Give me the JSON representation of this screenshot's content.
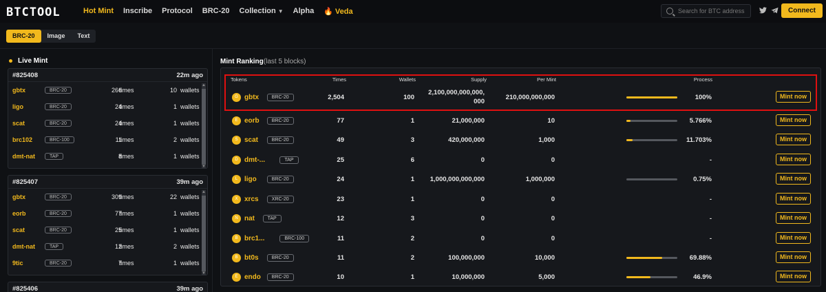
{
  "header": {
    "logo": "BTCTOOL",
    "nav": [
      {
        "label": "Hot Mint",
        "active": true
      },
      {
        "label": "Inscribe"
      },
      {
        "label": "Protocol"
      },
      {
        "label": "BRC-20"
      },
      {
        "label": "Collection",
        "dropdown": true
      },
      {
        "label": "Alpha"
      },
      {
        "label": "Veda",
        "icon": "fire-icon"
      }
    ],
    "search_placeholder": "Search for BTC address",
    "connect_label": "Connect",
    "accent": "#f2b91d"
  },
  "tabs": [
    "BRC-20",
    "Image",
    "Text"
  ],
  "live": {
    "title": "Live Mint",
    "times_unit": "times",
    "wallets_unit": "wallets",
    "blocks": [
      {
        "id": "#825408",
        "ago": "22m ago",
        "rows": [
          {
            "name": "gbtx",
            "tag": "BRC-20",
            "times": "266",
            "wallets": "10"
          },
          {
            "name": "ligo",
            "tag": "BRC-20",
            "times": "24",
            "wallets": "1"
          },
          {
            "name": "scat",
            "tag": "BRC-20",
            "times": "24",
            "wallets": "1"
          },
          {
            "name": "brc102",
            "tag": "BRC-100",
            "times": "11",
            "wallets": "2"
          },
          {
            "name": "dmt-nat",
            "tag": "TAP",
            "times": "8",
            "wallets": "1"
          }
        ]
      },
      {
        "id": "#825407",
        "ago": "39m ago",
        "rows": [
          {
            "name": "gbtx",
            "tag": "BRC-20",
            "times": "309",
            "wallets": "22"
          },
          {
            "name": "eorb",
            "tag": "BRC-20",
            "times": "77",
            "wallets": "1"
          },
          {
            "name": "scat",
            "tag": "BRC-20",
            "times": "25",
            "wallets": "1"
          },
          {
            "name": "dmt-nat",
            "tag": "TAP",
            "times": "12",
            "wallets": "2"
          },
          {
            "name": "9tic",
            "tag": "BRC-20",
            "times": "7",
            "wallets": "1"
          }
        ]
      },
      {
        "id": "#825406",
        "ago": "39m ago",
        "rows": []
      }
    ]
  },
  "ranking": {
    "title": "Mint Ranking",
    "subtitle": "(last 5 blocks)",
    "headers": {
      "tokens": "Tokens",
      "times": "Times",
      "wallets": "Wallets",
      "supply": "Supply",
      "per_mint": "Per Mint",
      "process": "Process"
    },
    "mint_label": "Mint now",
    "rows": [
      {
        "name": "gbtx",
        "tag": "BRC-20",
        "times": "2,504",
        "wallets": "100",
        "supply": "2,100,000,000,000,\n000",
        "per_mint": "210,000,000,000",
        "process": "100%",
        "fill": 1.0
      },
      {
        "name": "eorb",
        "tag": "BRC-20",
        "times": "77",
        "wallets": "1",
        "supply": "21,000,000",
        "per_mint": "10",
        "process": "5.766%",
        "fill": 0.05766
      },
      {
        "name": "scat",
        "tag": "BRC-20",
        "times": "49",
        "wallets": "3",
        "supply": "420,000,000",
        "per_mint": "1,000",
        "process": "11.703%",
        "fill": 0.11703
      },
      {
        "name": "dmt-...",
        "tag": "TAP",
        "times": "25",
        "wallets": "6",
        "supply": "0",
        "per_mint": "0",
        "process": "-",
        "fill": null
      },
      {
        "name": "ligo",
        "tag": "BRC-20",
        "times": "24",
        "wallets": "1",
        "supply": "1,000,000,000,000",
        "per_mint": "1,000,000",
        "process": "0.75%",
        "fill": 0.0075
      },
      {
        "name": "xrcs",
        "tag": "XRC-20",
        "times": "23",
        "wallets": "1",
        "supply": "0",
        "per_mint": "0",
        "process": "-",
        "fill": null
      },
      {
        "name": "nat",
        "tag": "TAP",
        "times": "12",
        "wallets": "3",
        "supply": "0",
        "per_mint": "0",
        "process": "-",
        "fill": null
      },
      {
        "name": "brc1...",
        "tag": "BRC-100",
        "times": "11",
        "wallets": "2",
        "supply": "0",
        "per_mint": "0",
        "process": "-",
        "fill": null
      },
      {
        "name": "bt0s",
        "tag": "BRC-20",
        "times": "11",
        "wallets": "2",
        "supply": "100,000,000",
        "per_mint": "10,000",
        "process": "69.88%",
        "fill": 0.6988
      },
      {
        "name": "endo",
        "tag": "BRC-20",
        "times": "10",
        "wallets": "1",
        "supply": "10,000,000",
        "per_mint": "5,000",
        "process": "46.9%",
        "fill": 0.469
      }
    ]
  }
}
